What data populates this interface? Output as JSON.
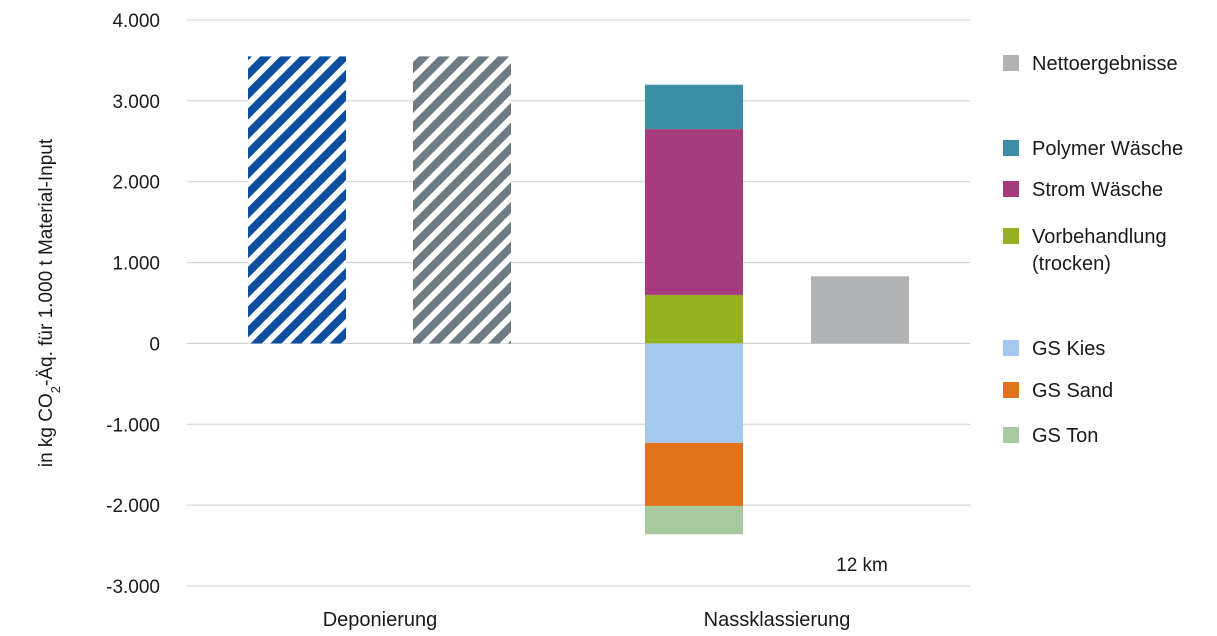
{
  "chart_data": {
    "type": "bar",
    "stacked": true,
    "ylabel": "in kg CO2-Äq. für 1.000 t Material-Input",
    "ylim": [
      -3000,
      4000
    ],
    "yticks": [
      4000,
      3000,
      2000,
      1000,
      0,
      -1000,
      -2000,
      -3000
    ],
    "ytick_labels": [
      "4.000",
      "3.000",
      "2.000",
      "1.000",
      "0",
      "-1.000",
      "-2.000",
      "-3.000"
    ],
    "grid": true,
    "legend_position": "right",
    "groups": [
      "Deponierung",
      "Nassklassierung"
    ],
    "bars": [
      {
        "group": "Deponierung",
        "fill": "hatched",
        "color": "#0d4f9e",
        "segments": [
          {
            "value": 3550
          }
        ]
      },
      {
        "group": "Deponierung",
        "fill": "hatched",
        "color": "#6f7b82",
        "segments": [
          {
            "value": 3550
          }
        ]
      },
      {
        "group": "Nassklassierung",
        "fill": "solid",
        "segments": [
          {
            "series": "Vorbehandlung (trocken)",
            "value": 600
          },
          {
            "series": "Strom Wäsche",
            "value": 2050
          },
          {
            "series": "Polymer Wäsche",
            "value": 550
          },
          {
            "series": "GS Kies",
            "value": -1230
          },
          {
            "series": "GS Sand",
            "value": -780
          },
          {
            "series": "GS Ton",
            "value": -350
          }
        ]
      },
      {
        "group": "Nassklassierung",
        "fill": "solid",
        "segments": [
          {
            "series": "Nettoergebnisse",
            "value": 830
          }
        ]
      }
    ],
    "legend": [
      {
        "name": "Nettoergebnisse",
        "color": "#b0b2b4"
      },
      {
        "name": "Polymer Wäsche",
        "color": "#3b8ea4"
      },
      {
        "name": "Strom Wäsche",
        "color": "#a63b7e"
      },
      {
        "name": "Vorbehandlung",
        "name_line2": "(trocken)",
        "color": "#95b11f"
      },
      {
        "name": "GS Kies",
        "color": "#a5c9ec"
      },
      {
        "name": "GS Sand",
        "color": "#e0721a"
      },
      {
        "name": "GS Ton",
        "color": "#a8c99f"
      }
    ],
    "annotation": "12 km"
  }
}
